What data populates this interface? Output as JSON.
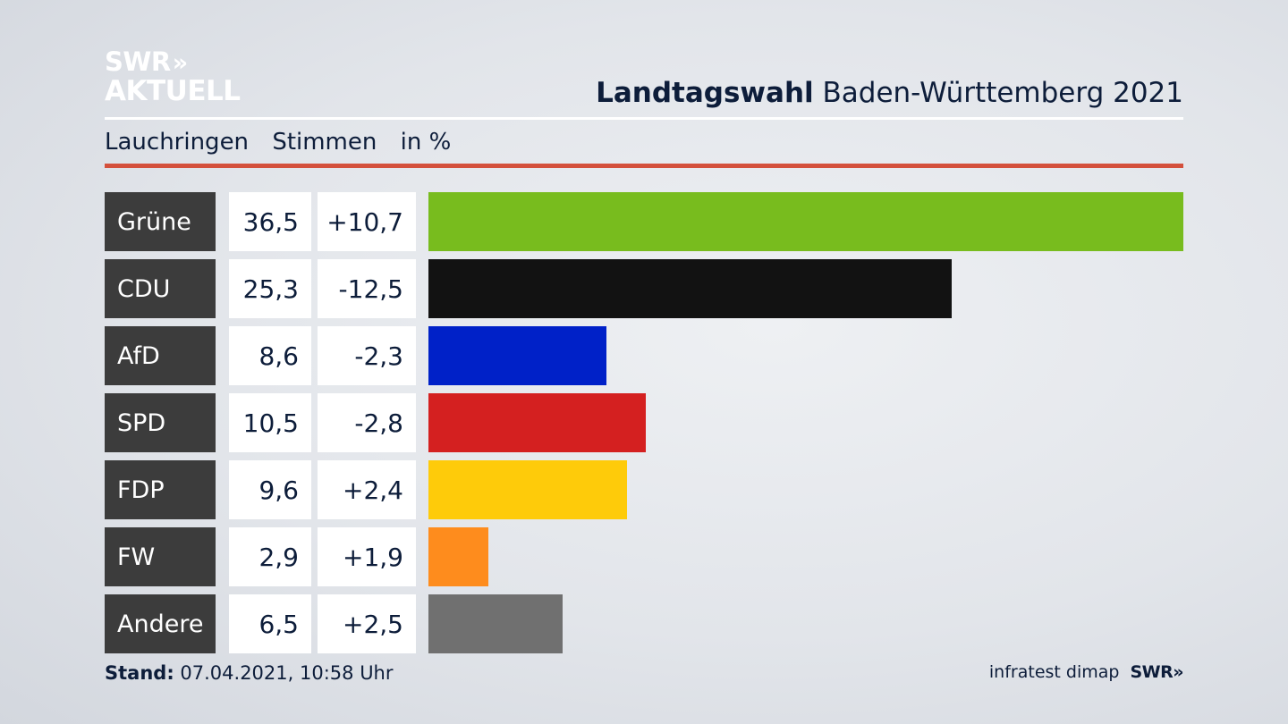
{
  "brand": {
    "logo_line1": "SWR",
    "logo_chevrons": "»",
    "logo_line2": "AKTUELL"
  },
  "header": {
    "title_bold": "Landtagswahl",
    "title_rest": "Baden-Württemberg 2021",
    "subtitle_place": "Lauchringen",
    "subtitle_measure": "Stimmen",
    "subtitle_unit": "in %"
  },
  "chart_data": {
    "type": "bar",
    "orientation": "horizontal",
    "categories": [
      "Grüne",
      "CDU",
      "AfD",
      "SPD",
      "FDP",
      "FW",
      "Andere"
    ],
    "values": [
      36.5,
      25.3,
      8.6,
      10.5,
      9.6,
      2.9,
      6.5
    ],
    "value_labels": [
      "36,5",
      "25,3",
      "8,6",
      "10,5",
      "9,6",
      "2,9",
      "6,5"
    ],
    "changes": [
      10.7,
      -12.5,
      -2.3,
      -2.8,
      2.4,
      1.9,
      2.5
    ],
    "change_labels": [
      "+10,7",
      "-12,5",
      "-2,3",
      "-2,8",
      "+2,4",
      "+1,9",
      "+2,5"
    ],
    "colors": [
      "#78bc1e",
      "#121212",
      "#0021c8",
      "#d42020",
      "#fecb0a",
      "#fe8c1d",
      "#707070"
    ],
    "xlim": [
      0,
      36.5
    ]
  },
  "footer": {
    "stand_label": "Stand:",
    "stand_value": "07.04.2021, 10:58 Uhr",
    "source": "infratest dimap",
    "source_logo": "SWR»"
  }
}
